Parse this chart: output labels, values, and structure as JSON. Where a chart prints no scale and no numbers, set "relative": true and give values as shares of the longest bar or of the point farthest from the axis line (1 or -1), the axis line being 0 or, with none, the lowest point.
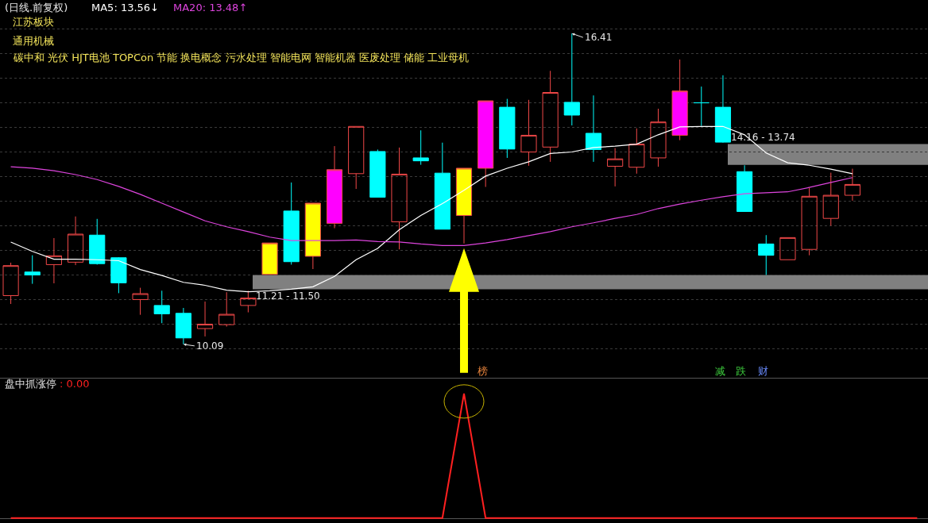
{
  "chart_data": [
    {
      "type": "candlestick",
      "title": "(日线.前复权)",
      "categories": [
        null,
        null,
        null,
        null,
        null,
        null,
        null,
        null,
        null,
        null,
        null,
        null,
        null,
        null,
        null,
        null,
        null,
        null,
        null,
        null,
        null,
        null,
        null,
        null,
        null,
        null,
        null,
        null,
        null,
        null,
        null,
        null,
        null,
        null,
        null,
        null,
        null,
        null,
        null,
        null,
        null,
        null,
        null
      ],
      "ohlc": [
        [
          11.08,
          11.75,
          10.91,
          11.69
        ],
        [
          11.56,
          11.9,
          11.32,
          11.5
        ],
        [
          11.71,
          12.25,
          11.33,
          11.89
        ],
        [
          11.76,
          12.69,
          11.7,
          12.33
        ],
        [
          12.31,
          12.64,
          11.71,
          11.73
        ],
        [
          11.85,
          11.86,
          11.13,
          11.34
        ],
        [
          11.0,
          11.24,
          10.69,
          11.12
        ],
        [
          10.88,
          11.18,
          10.52,
          10.71
        ],
        [
          10.72,
          10.83,
          10.09,
          10.22
        ],
        [
          10.41,
          10.96,
          10.25,
          10.5
        ],
        [
          10.49,
          11.15,
          10.45,
          10.7
        ],
        [
          10.88,
          11.18,
          10.74,
          11.03
        ],
        [
          11.51,
          12.15,
          11.51,
          12.15
        ],
        [
          12.8,
          13.38,
          11.71,
          11.77
        ],
        [
          11.88,
          12.96,
          11.62,
          12.96
        ],
        [
          12.55,
          14.12,
          12.45,
          13.64
        ],
        [
          13.56,
          14.52,
          13.25,
          14.52
        ],
        [
          14.01,
          14.05,
          13.08,
          13.08
        ],
        [
          12.58,
          14.09,
          12.02,
          13.55
        ],
        [
          13.88,
          14.44,
          13.74,
          13.82
        ],
        [
          13.57,
          14.19,
          12.43,
          12.43
        ],
        [
          12.71,
          13.67,
          12.14,
          13.67
        ],
        [
          13.67,
          15.04,
          13.29,
          15.04
        ],
        [
          14.91,
          15.08,
          13.88,
          14.06
        ],
        [
          14.0,
          15.06,
          13.72,
          14.34
        ],
        [
          14.1,
          15.65,
          13.8,
          15.21
        ],
        [
          15.01,
          16.41,
          14.54,
          14.75
        ],
        [
          14.38,
          15.15,
          13.8,
          14.05
        ],
        [
          13.71,
          14.08,
          13.3,
          13.86
        ],
        [
          13.69,
          14.48,
          13.56,
          14.16
        ],
        [
          13.88,
          14.88,
          13.7,
          14.61
        ],
        [
          14.34,
          15.88,
          14.24,
          15.24
        ],
        [
          15.0,
          15.33,
          14.53,
          15.0
        ],
        [
          14.91,
          15.56,
          14.19,
          14.2
        ],
        [
          13.6,
          13.73,
          12.79,
          12.79
        ],
        [
          12.13,
          12.31,
          11.5,
          11.9
        ],
        [
          11.81,
          12.26,
          11.81,
          12.26
        ],
        [
          12.02,
          13.27,
          11.9,
          13.1
        ],
        [
          12.65,
          13.58,
          12.5,
          13.12
        ],
        [
          13.12,
          13.66,
          13.01,
          13.34
        ],
        null,
        null,
        null
      ],
      "color": "#f04848",
      "colors": [
        "#f04848",
        "#00ffff",
        "#f04848",
        "#f04848",
        "#00ffff",
        "#00ffff",
        "#f04848",
        "#00ffff",
        "#00ffff",
        "#f04848",
        "#f04848",
        "#f04848",
        "#ffff00",
        "#00ffff",
        "#ffff00",
        "#ff00ff",
        "#f04848",
        "#00ffff",
        "#f04848",
        "#00ffff",
        "#00ffff",
        "#ffff00",
        "#ff00ff",
        "#00ffff",
        "#f04848",
        "#f04848",
        "#00ffff",
        "#00ffff",
        "#f04848",
        "#f04848",
        "#f04848",
        "#ff00ff",
        "#00ffff",
        "#00ffff",
        "#00ffff",
        "#00ffff",
        "#f04848",
        "#f04848",
        "#f04848",
        "#f04848",
        null,
        null,
        null
      ],
      "series": [
        {
          "type": "line",
          "name": "MA5: 13.56↓",
          "color": "#ffffff",
          "values": [
            12.17,
            11.98,
            11.82,
            11.82,
            11.81,
            11.79,
            11.61,
            11.49,
            11.35,
            11.29,
            11.19,
            11.16,
            11.18,
            11.21,
            11.26,
            11.47,
            11.81,
            12.04,
            12.42,
            12.71,
            12.95,
            13.22,
            13.51,
            13.67,
            13.8,
            13.97,
            14.0,
            14.09,
            14.12,
            14.16,
            14.35,
            14.51,
            14.52,
            14.52,
            14.35,
            13.98,
            13.78,
            13.73,
            13.65,
            13.56,
            null,
            null,
            null
          ]
        },
        {
          "type": "line",
          "name": "MA20: 13.48↑",
          "color": "#dd44dd",
          "values": [
            13.7,
            13.67,
            13.62,
            13.54,
            13.44,
            13.3,
            13.14,
            12.96,
            12.78,
            12.6,
            12.48,
            12.38,
            12.27,
            12.2,
            12.2,
            12.2,
            12.21,
            12.18,
            12.17,
            12.13,
            12.1,
            12.1,
            12.15,
            12.22,
            12.3,
            12.38,
            12.48,
            12.56,
            12.65,
            12.73,
            12.85,
            12.94,
            13.02,
            13.09,
            13.15,
            13.17,
            13.19,
            13.28,
            13.38,
            13.48,
            null,
            null,
            null
          ]
        }
      ],
      "ylim": [
        9.41,
        17.09
      ],
      "yticks": [
        {
          "value": 10.0,
          "label": null
        },
        {
          "value": 10.5,
          "label": null
        },
        {
          "value": 11.0,
          "label": null
        },
        {
          "value": 11.5,
          "label": null
        },
        {
          "value": 12.0,
          "label": null
        },
        {
          "value": 12.5,
          "label": null
        },
        {
          "value": 13.0,
          "label": null
        },
        {
          "value": 13.5,
          "label": null
        },
        {
          "value": 14.0,
          "label": null
        },
        {
          "value": 14.5,
          "label": null
        },
        {
          "value": 15.0,
          "label": null
        },
        {
          "value": 15.5,
          "label": null
        },
        {
          "value": 16.0,
          "label": null
        },
        {
          "value": 16.5,
          "label": null
        }
      ],
      "grid": "y",
      "legend": "top left",
      "bands": [
        {
          "axis": "y",
          "from": 11.21,
          "to": 11.5,
          "label": "11.21 - 11.50",
          "color": "#808080"
        },
        {
          "axis": "y",
          "from": 13.74,
          "to": 14.16,
          "label": "14.16 - 13.74",
          "color": "#808080"
        }
      ],
      "annotations": [
        "江苏板块",
        "通用机械",
        "碳中和 光伏 HJT电池 TOPCon 节能 换电概念 污水处理 智能电网 智能机器 医废处理 储能 工业母机",
        "16.41",
        "10.09",
        "榜",
        "减",
        "跌",
        "财"
      ]
    },
    {
      "type": "line",
      "title": "盘中抓涨停",
      "relative": true,
      "categories": [
        null,
        null,
        null,
        null,
        null,
        null,
        null,
        null,
        null,
        null,
        null,
        null,
        null,
        null,
        null,
        null,
        null,
        null,
        null,
        null,
        null,
        null,
        null,
        null,
        null,
        null,
        null,
        null,
        null,
        null,
        null,
        null,
        null,
        null,
        null,
        null,
        null,
        null,
        null,
        null,
        null,
        null,
        null
      ],
      "series": [
        {
          "color": "#ff2020",
          "values": [
            0,
            0,
            0,
            0,
            0,
            0,
            0,
            0,
            0,
            0,
            0,
            0,
            0,
            0,
            0,
            0,
            0,
            0,
            0,
            0,
            0,
            1,
            0,
            0,
            0,
            0,
            0,
            0,
            0,
            0,
            0,
            0,
            0,
            0,
            0,
            0,
            0,
            0,
            0,
            0,
            0,
            0,
            0
          ]
        }
      ],
      "annotations": [
        ": 0.00"
      ]
    }
  ]
}
